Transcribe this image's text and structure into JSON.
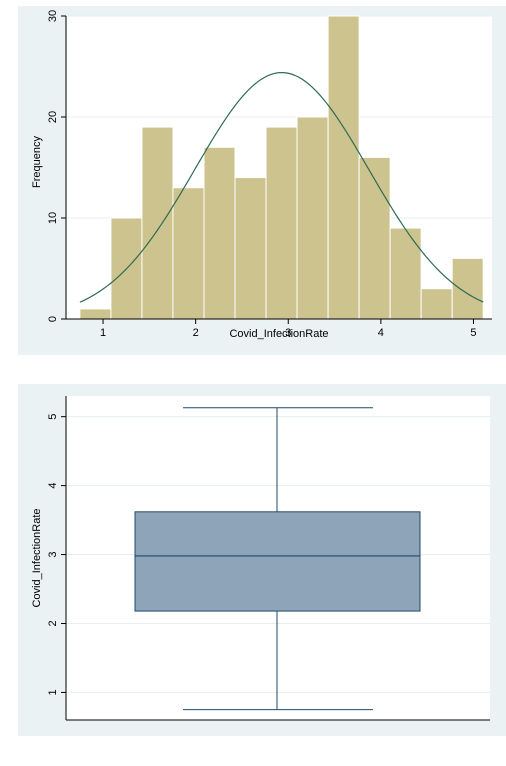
{
  "chart_data": [
    {
      "type": "histogram",
      "xlabel": "Covid_InfectionRate",
      "ylabel": "Frequency",
      "xlim": [
        0.6,
        5.2
      ],
      "ylim": [
        0,
        30
      ],
      "xticks": [
        "1",
        "2",
        "3",
        "4",
        "5"
      ],
      "yticks": [
        "0",
        "10",
        "20",
        "30"
      ],
      "bin_start": 0.75,
      "bin_width": 0.335,
      "frequencies": [
        1,
        10,
        19,
        13,
        17,
        14,
        19,
        20,
        30,
        16,
        9,
        3,
        6
      ],
      "normal_curve": {
        "mean": 2.93,
        "sd": 0.94,
        "peak": 24.4
      },
      "bar_color": "#cdc38e",
      "curve_color": "#2e6b54",
      "grid": true
    },
    {
      "type": "box",
      "ylabel": "Covid_InfectionRate",
      "ylim": [
        0.6,
        5.3
      ],
      "yticks": [
        "1",
        "2",
        "3",
        "4",
        "5"
      ],
      "min": 0.75,
      "q1": 2.18,
      "median": 2.98,
      "q3": 3.62,
      "max": 5.13,
      "box_color": "#8ea4b8",
      "line_color": "#1f4a6b",
      "grid": true
    }
  ]
}
